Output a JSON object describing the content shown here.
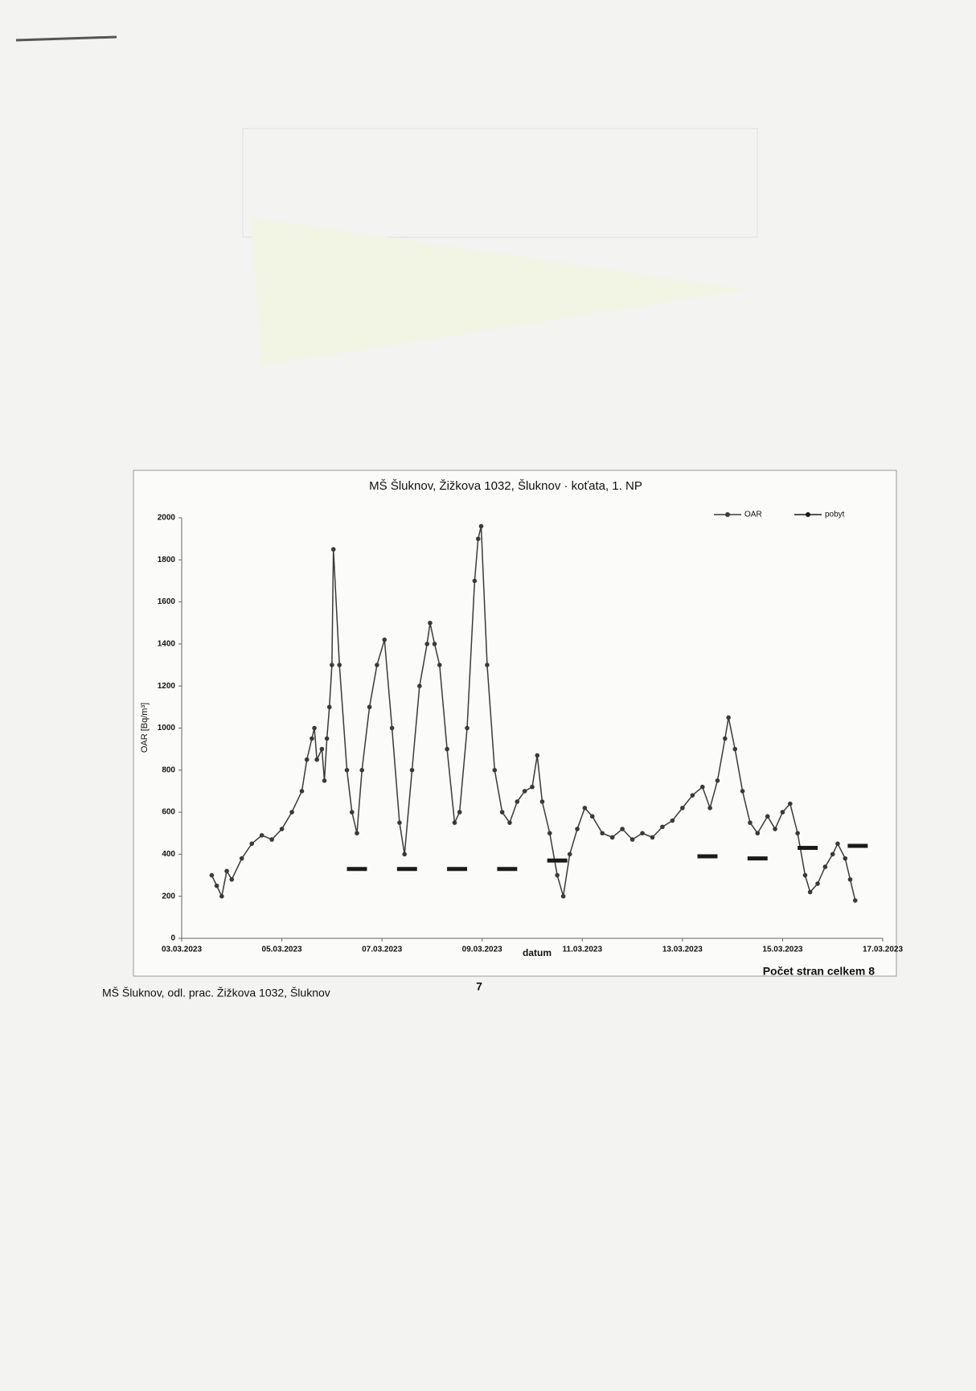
{
  "chart_data": {
    "type": "line",
    "title": "MŠ Šluknov, Žižkova 1032, Šluknov · koťata, 1. NP",
    "x_label": "datum",
    "y_label": "OAR [Bq/m³]",
    "xlim": [
      3,
      17
    ],
    "xticks": [
      {
        "value": 3,
        "label": "03.03.2023"
      },
      {
        "value": 5,
        "label": "05.03.2023"
      },
      {
        "value": 7,
        "label": "07.03.2023"
      },
      {
        "value": 9,
        "label": "09.03.2023"
      },
      {
        "value": 11,
        "label": "11.03.2023"
      },
      {
        "value": 13,
        "label": "13.03.2023"
      },
      {
        "value": 15,
        "label": "15.03.2023"
      },
      {
        "value": 17,
        "label": "17.03.2023"
      }
    ],
    "ylim": [
      0,
      2000
    ],
    "yticks": [
      0,
      200,
      400,
      600,
      800,
      1000,
      1200,
      1400,
      1600,
      1800,
      2000
    ],
    "legend": "top-right",
    "series": [
      {
        "name": "OAR",
        "color": "#3a3a3a",
        "markers": true,
        "x": [
          3.6,
          3.7,
          3.8,
          3.9,
          4.0,
          4.2,
          4.4,
          4.6,
          4.8,
          5.0,
          5.2,
          5.4,
          5.5,
          5.6,
          5.65,
          5.7,
          5.8,
          5.85,
          5.9,
          5.95,
          6.0,
          6.03,
          6.15,
          6.3,
          6.4,
          6.5,
          6.6,
          6.75,
          6.9,
          7.05,
          7.2,
          7.35,
          7.45,
          7.6,
          7.75,
          7.9,
          7.96,
          8.05,
          8.15,
          8.3,
          8.45,
          8.55,
          8.7,
          8.85,
          8.92,
          8.98,
          9.1,
          9.25,
          9.4,
          9.55,
          9.7,
          9.85,
          10.0,
          10.1,
          10.2,
          10.35,
          10.5,
          10.62,
          10.75,
          10.9,
          11.05,
          11.2,
          11.4,
          11.6,
          11.8,
          12.0,
          12.2,
          12.4,
          12.6,
          12.8,
          13.0,
          13.2,
          13.4,
          13.55,
          13.7,
          13.85,
          13.92,
          14.05,
          14.2,
          14.35,
          14.5,
          14.7,
          14.85,
          15.0,
          15.15,
          15.3,
          15.45,
          15.55,
          15.7,
          15.85,
          16.0,
          16.1,
          16.25,
          16.35,
          16.45
        ],
        "values": [
          300,
          250,
          200,
          320,
          280,
          380,
          450,
          490,
          470,
          520,
          600,
          700,
          850,
          950,
          1000,
          850,
          900,
          750,
          950,
          1100,
          1300,
          1850,
          1300,
          800,
          600,
          500,
          800,
          1100,
          1300,
          1420,
          1000,
          550,
          400,
          800,
          1200,
          1400,
          1500,
          1400,
          1300,
          900,
          550,
          600,
          1000,
          1700,
          1900,
          1960,
          1300,
          800,
          600,
          550,
          650,
          700,
          720,
          870,
          650,
          500,
          300,
          200,
          400,
          520,
          620,
          580,
          500,
          480,
          520,
          470,
          500,
          480,
          530,
          560,
          620,
          680,
          720,
          620,
          750,
          950,
          1050,
          900,
          700,
          550,
          500,
          580,
          520,
          600,
          640,
          500,
          300,
          220,
          260,
          340,
          400,
          450,
          380,
          280,
          180
        ]
      },
      {
        "name": "pobyt",
        "color": "#1a1a1a",
        "markers": false,
        "x": [
          6.3,
          6.7,
          null,
          7.3,
          7.7,
          null,
          8.3,
          8.7,
          null,
          9.3,
          9.7,
          null,
          10.3,
          10.7,
          null,
          13.3,
          13.7,
          null,
          14.3,
          14.7,
          null,
          15.3,
          15.7,
          null,
          16.3,
          16.7
        ],
        "values": [
          330,
          330,
          null,
          330,
          330,
          null,
          330,
          330,
          null,
          330,
          330,
          null,
          370,
          370,
          null,
          390,
          390,
          null,
          380,
          380,
          null,
          430,
          430,
          null,
          440,
          440
        ]
      }
    ]
  },
  "footer": {
    "left": "MŠ Šluknov, odl. prac. Žižkova 1032, Šluknov",
    "page": "7",
    "right": "Počet stran celkem 8"
  }
}
